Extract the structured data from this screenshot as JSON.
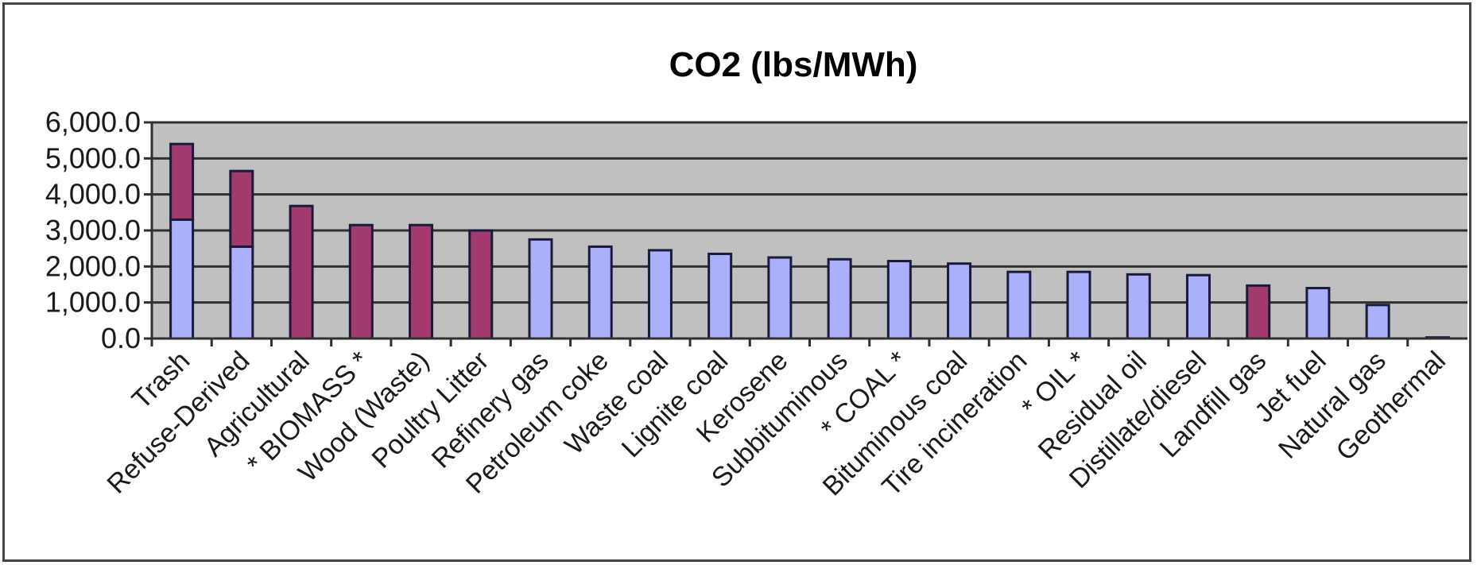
{
  "chart_data": {
    "type": "bar",
    "stacked": true,
    "title": "CO2 (lbs/MWh)",
    "xlabel": "",
    "ylabel": "",
    "ylim": [
      0,
      6000
    ],
    "yticks": [
      0,
      1000,
      2000,
      3000,
      4000,
      5000,
      6000
    ],
    "ytick_labels": [
      "0.0",
      "1,000.0",
      "2,000.0",
      "3,000.0",
      "4,000.0",
      "5,000.0",
      "6,000.0"
    ],
    "grid": true,
    "legend": "none",
    "categories": [
      "Trash",
      "Refuse-Derived",
      "Agricultural",
      "* BIOMASS *",
      "Wood (Waste)",
      "Poultry Litter",
      "Refinery gas",
      "Petroleum coke",
      "Waste coal",
      "Lignite coal",
      "Kerosene",
      "Subbituminous",
      "* COAL *",
      "Bituminous coal",
      "Tire incineration",
      "* OIL *",
      "Residual oil",
      "Distillate/diesel",
      "Landfill gas",
      "Jet fuel",
      "Natural gas",
      "Geothermal"
    ],
    "series": [
      {
        "color": "#aab0fc",
        "values": [
          3300,
          2550,
          0,
          0,
          0,
          0,
          2750,
          2550,
          2450,
          2350,
          2250,
          2200,
          2150,
          2080,
          1850,
          1850,
          1780,
          1760,
          0,
          1400,
          930,
          30
        ]
      },
      {
        "color": "#a33a6e",
        "values": [
          2100,
          2100,
          3680,
          3150,
          3150,
          3000,
          0,
          0,
          0,
          0,
          0,
          0,
          0,
          0,
          0,
          0,
          0,
          0,
          1470,
          0,
          0,
          0
        ]
      }
    ]
  },
  "colors": {
    "plot_background": "#c0c0c0",
    "gridline": "#303030"
  }
}
